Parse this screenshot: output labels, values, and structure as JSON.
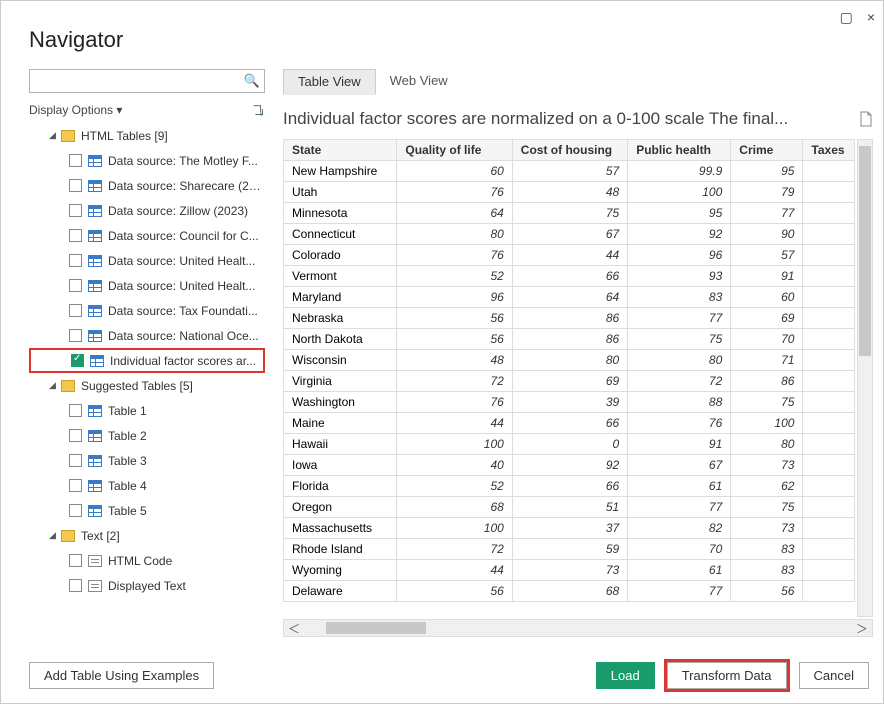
{
  "dialog": {
    "title": "Navigator"
  },
  "window": {
    "close": "×",
    "maximize": "▢"
  },
  "search": {
    "placeholder": ""
  },
  "display_options": {
    "label": "Display Options"
  },
  "tree": {
    "html_tables": {
      "label": "HTML Tables [9]",
      "expanded": true
    },
    "html_items": [
      {
        "label": "Data source: The Motley F...",
        "checked": false
      },
      {
        "label": "Data source: Sharecare (20...",
        "checked": false
      },
      {
        "label": "Data source: Zillow (2023)",
        "checked": false
      },
      {
        "label": "Data source: Council for C...",
        "checked": false
      },
      {
        "label": "Data source: United Healt...",
        "checked": false
      },
      {
        "label": "Data source: United Healt...",
        "checked": false
      },
      {
        "label": "Data source: Tax Foundati...",
        "checked": false
      },
      {
        "label": "Data source: National Oce...",
        "checked": false
      },
      {
        "label": "Individual factor scores ar...",
        "checked": true,
        "highlighted": true
      }
    ],
    "suggested": {
      "label": "Suggested Tables [5]",
      "expanded": true
    },
    "suggested_items": [
      {
        "label": "Table 1"
      },
      {
        "label": "Table 2"
      },
      {
        "label": "Table 3"
      },
      {
        "label": "Table 4"
      },
      {
        "label": "Table 5"
      }
    ],
    "text": {
      "label": "Text [2]",
      "expanded": true
    },
    "text_items": [
      {
        "label": "HTML Code"
      },
      {
        "label": "Displayed Text"
      }
    ]
  },
  "tabs": {
    "table_view": "Table View",
    "web_view": "Web View"
  },
  "preview": {
    "title": "Individual factor scores are normalized on a 0-100 scale The final...",
    "columns": [
      "State",
      "Quality of life",
      "Cost of housing",
      "Public health",
      "Crime",
      "Taxes"
    ],
    "col_widths": [
      "110px",
      "112px",
      "112px",
      "100px",
      "70px",
      "50px"
    ],
    "rows": [
      [
        "New Hampshire",
        60,
        57,
        99.9,
        95,
        ""
      ],
      [
        "Utah",
        76,
        48,
        100,
        79,
        ""
      ],
      [
        "Minnesota",
        64,
        75,
        95,
        77,
        ""
      ],
      [
        "Connecticut",
        80,
        67,
        92,
        90,
        ""
      ],
      [
        "Colorado",
        76,
        44,
        96,
        57,
        ""
      ],
      [
        "Vermont",
        52,
        66,
        93,
        91,
        ""
      ],
      [
        "Maryland",
        96,
        64,
        83,
        60,
        ""
      ],
      [
        "Nebraska",
        56,
        86,
        77,
        69,
        ""
      ],
      [
        "North Dakota",
        56,
        86,
        75,
        70,
        ""
      ],
      [
        "Wisconsin",
        48,
        80,
        80,
        71,
        ""
      ],
      [
        "Virginia",
        72,
        69,
        72,
        86,
        ""
      ],
      [
        "Washington",
        76,
        39,
        88,
        75,
        ""
      ],
      [
        "Maine",
        44,
        66,
        76,
        100,
        ""
      ],
      [
        "Hawaii",
        100,
        0,
        91,
        80,
        ""
      ],
      [
        "Iowa",
        40,
        92,
        67,
        73,
        ""
      ],
      [
        "Florida",
        52,
        66,
        61,
        62,
        ""
      ],
      [
        "Oregon",
        68,
        51,
        77,
        75,
        ""
      ],
      [
        "Massachusetts",
        100,
        37,
        82,
        73,
        ""
      ],
      [
        "Rhode Island",
        72,
        59,
        70,
        83,
        ""
      ],
      [
        "Wyoming",
        44,
        73,
        61,
        83,
        ""
      ],
      [
        "Delaware",
        56,
        68,
        77,
        56,
        ""
      ]
    ]
  },
  "buttons": {
    "add_examples": "Add Table Using Examples",
    "load": "Load",
    "transform": "Transform Data",
    "cancel": "Cancel"
  },
  "colors": {
    "highlight": "#d9372f",
    "primary": "#1a9b6c",
    "search_icon": "#0a7bc1"
  }
}
